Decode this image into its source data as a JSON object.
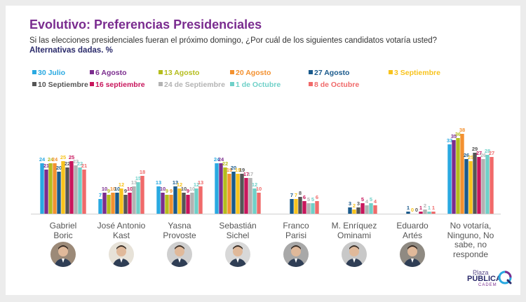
{
  "header": {
    "title": "Evolutivo: Preferencias Presidenciales",
    "subtitle": "Si las elecciones presidenciales fueran el próximo domingo, ¿Por cuál de los siguientes candidatos votaría usted?",
    "subtitle2": "Alternativas dadas. %"
  },
  "logo": {
    "line1": "Plaza",
    "line2": "PÚBLICA",
    "line3": "CADEM"
  },
  "chart_data": {
    "type": "bar",
    "categories": [
      "Gabriel\nBoric",
      "José Antonio\nKast",
      "Yasna\nProvoste",
      "Sebastián\nSichel",
      "Franco\nParisi",
      "M. Enríquez\nOminami",
      "Eduardo\nArtés",
      "No votaría,\nNinguno, No\nsabe, no\nresponde"
    ],
    "series": [
      {
        "name": "30 Julio",
        "color": "#29a9e1",
        "values": [
          24,
          7,
          13,
          24,
          null,
          null,
          null,
          33
        ]
      },
      {
        "name": "6 Agosto",
        "color": "#7b2d8e",
        "values": [
          21,
          10,
          10,
          24,
          null,
          null,
          null,
          35
        ]
      },
      {
        "name": "13 Agosto",
        "color": "#b5bd1d",
        "values": [
          24,
          9,
          9,
          22,
          null,
          null,
          null,
          36
        ]
      },
      {
        "name": "20 Agosto",
        "color": "#f39130",
        "values": [
          24,
          10,
          9,
          19,
          null,
          null,
          null,
          38
        ]
      },
      {
        "name": "27 Agosto",
        "color": "#1a5a8c",
        "values": [
          20,
          10,
          13,
          20,
          7,
          3,
          1,
          26
        ]
      },
      {
        "name": "3 Septiembre",
        "color": "#f8c31d",
        "values": [
          25,
          12,
          12,
          19,
          7,
          2,
          0,
          25
        ]
      },
      {
        "name": "10 Septiembre",
        "color": "#555555",
        "values": [
          22,
          9,
          10,
          19,
          8,
          3,
          0,
          29
        ]
      },
      {
        "name": "16 septiembre",
        "color": "#c8165c",
        "values": [
          25,
          10,
          9,
          17,
          6,
          5,
          1,
          27
        ]
      },
      {
        "name": "24 de Septiembre",
        "color": "#b3b3b3",
        "values": [
          23,
          13,
          10,
          17,
          5,
          4,
          2,
          26
        ]
      },
      {
        "name": "1 de Octubre",
        "color": "#6fd0c8",
        "values": [
          22,
          15,
          12,
          12,
          5,
          5,
          1,
          28
        ]
      },
      {
        "name": "8 de Octubre",
        "color": "#f06a6a",
        "values": [
          21,
          18,
          13,
          10,
          6,
          4,
          1,
          27
        ]
      }
    ],
    "ylim": [
      0,
      45
    ],
    "grid": false,
    "legend": "top"
  }
}
